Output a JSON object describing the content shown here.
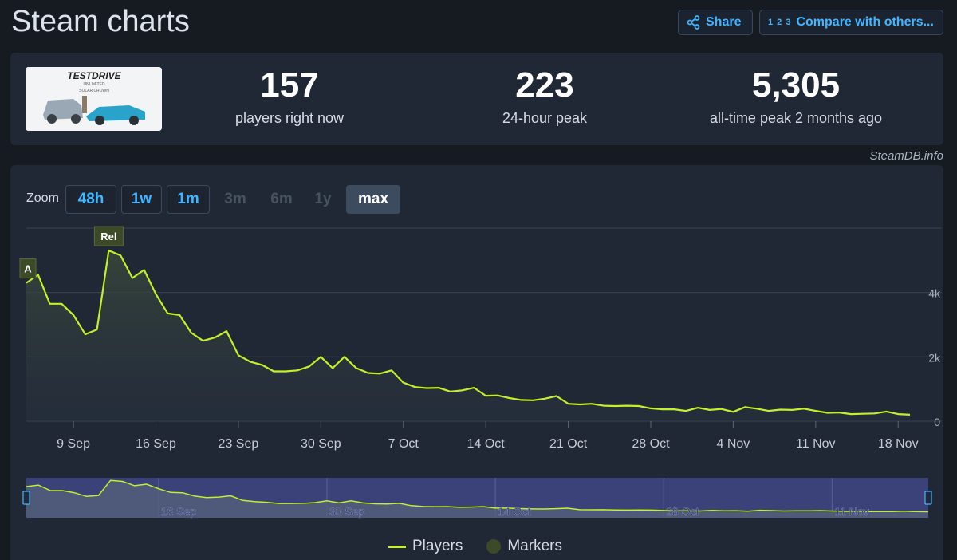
{
  "header": {
    "title": "Steam charts",
    "share_label": "Share",
    "compare_label": "Compare with others...",
    "compare_icon": "1 2 3"
  },
  "stats": {
    "now_value": "157",
    "now_label": "players right now",
    "peak24_value": "223",
    "peak24_label": "24-hour peak",
    "alltime_value": "5,305",
    "alltime_label": "all-time peak 2 months ago"
  },
  "game": {
    "logo_text": "TESTDRIVE",
    "logo_sub": "UNLIMITED",
    "logo_sub2": "SOLAR CROWN"
  },
  "credit": "SteamDB.info",
  "zoom": {
    "label": "Zoom",
    "buttons": [
      {
        "label": "48h",
        "state": "enabled"
      },
      {
        "label": "1w",
        "state": "enabled"
      },
      {
        "label": "1m",
        "state": "enabled"
      },
      {
        "label": "3m",
        "state": "disabled"
      },
      {
        "label": "6m",
        "state": "disabled"
      },
      {
        "label": "1y",
        "state": "disabled"
      },
      {
        "label": "max",
        "state": "active"
      }
    ]
  },
  "legend": {
    "players": "Players",
    "markers": "Markers"
  },
  "colors": {
    "line": "#c2f02a",
    "marker": "#3c4a28",
    "accent": "#3fb6ff"
  },
  "chart_data": {
    "type": "area",
    "series": [
      {
        "name": "Players"
      }
    ],
    "y_ticks": [
      {
        "value": 0,
        "label": "0"
      },
      {
        "value": 2000,
        "label": "2k"
      },
      {
        "value": 4000,
        "label": "4k"
      }
    ],
    "ylim": [
      0,
      6000
    ],
    "xlim": [
      "2024-09-05",
      "2024-11-19"
    ],
    "x_ticks": [
      {
        "date": "2024-09-09",
        "label": "9 Sep"
      },
      {
        "date": "2024-09-16",
        "label": "16 Sep"
      },
      {
        "date": "2024-09-23",
        "label": "23 Sep"
      },
      {
        "date": "2024-09-30",
        "label": "30 Sep"
      },
      {
        "date": "2024-10-07",
        "label": "7 Oct"
      },
      {
        "date": "2024-10-14",
        "label": "14 Oct"
      },
      {
        "date": "2024-10-21",
        "label": "21 Oct"
      },
      {
        "date": "2024-10-28",
        "label": "28 Oct"
      },
      {
        "date": "2024-11-04",
        "label": "4 Nov"
      },
      {
        "date": "2024-11-11",
        "label": "11 Nov"
      },
      {
        "date": "2024-11-18",
        "label": "18 Nov"
      }
    ],
    "navigator_ticks": [
      {
        "date": "2024-09-16",
        "label": "16 Sep"
      },
      {
        "date": "2024-09-30",
        "label": "30 Sep"
      },
      {
        "date": "2024-10-14",
        "label": "14 Oct"
      },
      {
        "date": "2024-10-28",
        "label": "28 Oct"
      },
      {
        "date": "2024-11-11",
        "label": "11 Nov"
      }
    ],
    "markers": [
      {
        "date": "2024-09-05",
        "label": "A"
      },
      {
        "date": "2024-09-12",
        "label": "Rel"
      }
    ],
    "points": [
      [
        "2024-09-05",
        4300
      ],
      [
        "2024-09-06",
        4550
      ],
      [
        "2024-09-07",
        3650
      ],
      [
        "2024-09-08",
        3650
      ],
      [
        "2024-09-09",
        3300
      ],
      [
        "2024-09-10",
        2700
      ],
      [
        "2024-09-11",
        2850
      ],
      [
        "2024-09-12",
        5305
      ],
      [
        "2024-09-13",
        5150
      ],
      [
        "2024-09-14",
        4450
      ],
      [
        "2024-09-15",
        4700
      ],
      [
        "2024-09-16",
        3950
      ],
      [
        "2024-09-17",
        3350
      ],
      [
        "2024-09-18",
        3300
      ],
      [
        "2024-09-19",
        2750
      ],
      [
        "2024-09-20",
        2500
      ],
      [
        "2024-09-21",
        2600
      ],
      [
        "2024-09-22",
        2800
      ],
      [
        "2024-09-23",
        2050
      ],
      [
        "2024-09-24",
        1850
      ],
      [
        "2024-09-25",
        1750
      ],
      [
        "2024-09-26",
        1550
      ],
      [
        "2024-09-27",
        1550
      ],
      [
        "2024-09-28",
        1580
      ],
      [
        "2024-09-29",
        1700
      ],
      [
        "2024-09-30",
        2000
      ],
      [
        "2024-10-01",
        1650
      ],
      [
        "2024-10-02",
        2000
      ],
      [
        "2024-10-03",
        1650
      ],
      [
        "2024-10-04",
        1500
      ],
      [
        "2024-10-05",
        1480
      ],
      [
        "2024-10-06",
        1580
      ],
      [
        "2024-10-07",
        1200
      ],
      [
        "2024-10-08",
        1060
      ],
      [
        "2024-10-09",
        1030
      ],
      [
        "2024-10-10",
        1040
      ],
      [
        "2024-10-11",
        920
      ],
      [
        "2024-10-12",
        960
      ],
      [
        "2024-10-13",
        1040
      ],
      [
        "2024-10-14",
        790
      ],
      [
        "2024-10-15",
        800
      ],
      [
        "2024-10-16",
        720
      ],
      [
        "2024-10-17",
        660
      ],
      [
        "2024-10-18",
        650
      ],
      [
        "2024-10-19",
        700
      ],
      [
        "2024-10-20",
        780
      ],
      [
        "2024-10-21",
        540
      ],
      [
        "2024-10-22",
        520
      ],
      [
        "2024-10-23",
        540
      ],
      [
        "2024-10-24",
        480
      ],
      [
        "2024-10-25",
        470
      ],
      [
        "2024-10-26",
        480
      ],
      [
        "2024-10-27",
        470
      ],
      [
        "2024-10-28",
        400
      ],
      [
        "2024-10-29",
        370
      ],
      [
        "2024-10-30",
        370
      ],
      [
        "2024-10-31",
        320
      ],
      [
        "2024-11-01",
        420
      ],
      [
        "2024-11-02",
        350
      ],
      [
        "2024-11-03",
        380
      ],
      [
        "2024-11-04",
        290
      ],
      [
        "2024-11-05",
        440
      ],
      [
        "2024-11-06",
        390
      ],
      [
        "2024-11-07",
        320
      ],
      [
        "2024-11-08",
        360
      ],
      [
        "2024-11-09",
        350
      ],
      [
        "2024-11-10",
        390
      ],
      [
        "2024-11-11",
        320
      ],
      [
        "2024-11-12",
        260
      ],
      [
        "2024-11-13",
        270
      ],
      [
        "2024-11-14",
        220
      ],
      [
        "2024-11-15",
        230
      ],
      [
        "2024-11-16",
        240
      ],
      [
        "2024-11-17",
        300
      ],
      [
        "2024-11-18",
        220
      ],
      [
        "2024-11-19",
        200
      ]
    ]
  }
}
